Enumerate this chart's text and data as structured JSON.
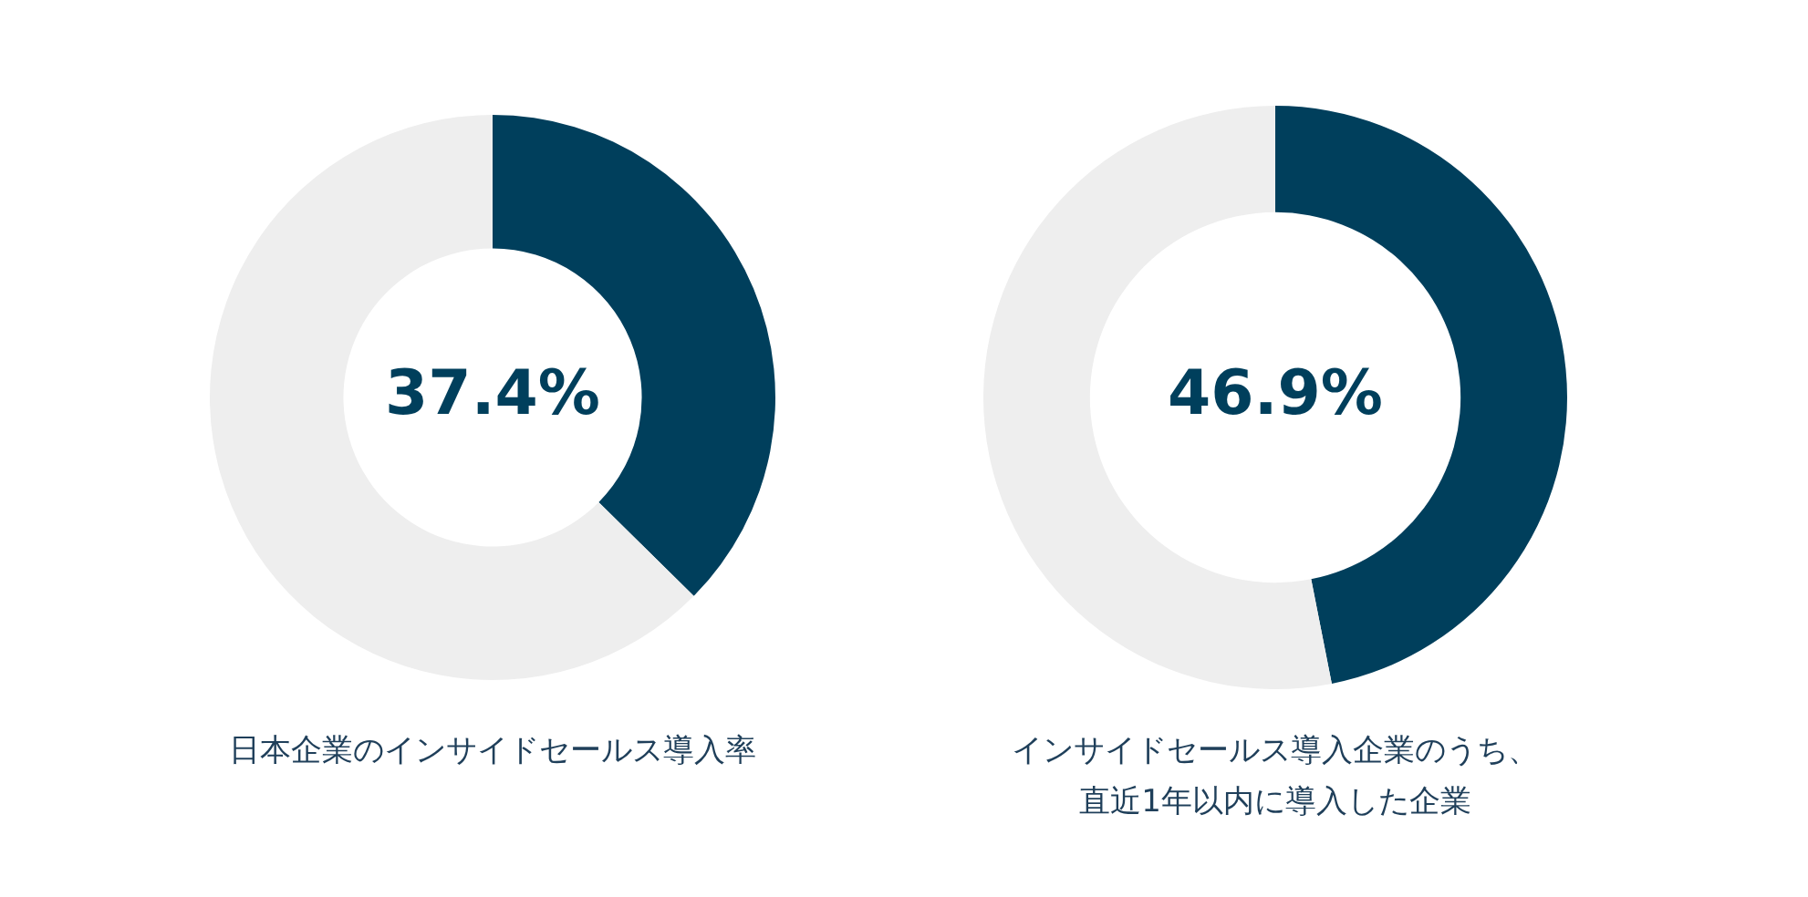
{
  "chart_data": [
    {
      "type": "donut",
      "title": "日本企業のインサイドセールス導入率",
      "categories": [
        null,
        null
      ],
      "values": [
        37.4,
        62.6
      ],
      "colors": [
        "#003f5c",
        "#eeeeee"
      ],
      "value_labels": [
        "37.4%",
        null
      ]
    },
    {
      "type": "donut",
      "title": "インサイドセールス導入企業のうち、直近1年以内に導入した企業",
      "categories": [
        null,
        null
      ],
      "values": [
        46.9,
        53.1
      ],
      "colors": [
        "#003f5c",
        "#eeeeee"
      ],
      "value_labels": [
        "46.9%",
        null
      ]
    }
  ]
}
